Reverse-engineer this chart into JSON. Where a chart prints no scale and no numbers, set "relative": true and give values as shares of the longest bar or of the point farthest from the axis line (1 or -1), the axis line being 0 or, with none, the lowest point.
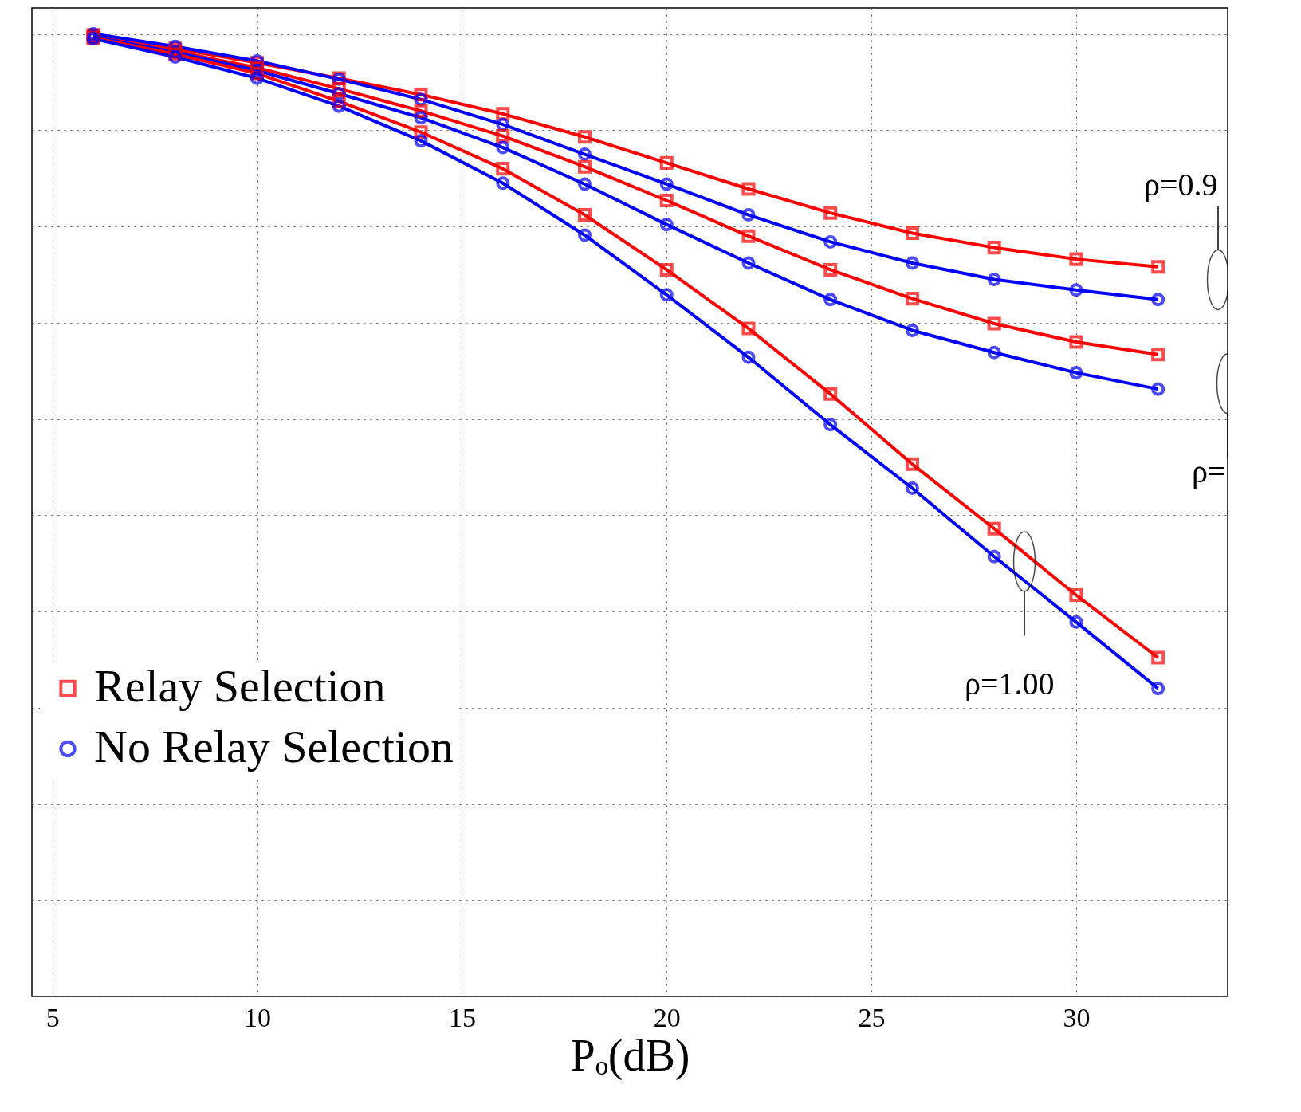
{
  "chart_data": {
    "type": "line",
    "relative": true,
    "xlabel": "Pₒ(dB)",
    "xlim": [
      4.5,
      33.7
    ],
    "xticks": [
      5,
      10,
      15,
      20,
      25,
      30
    ],
    "grid": true,
    "legend": "bottom left",
    "x": [
      6,
      8,
      10,
      12,
      14,
      16,
      18,
      20,
      22,
      24,
      26,
      28,
      30,
      32
    ],
    "series": [
      {
        "name": "Relay Selection",
        "color": "#ff0000",
        "marker": "square",
        "values": [
          0.999,
          0.985,
          0.97,
          0.954,
          0.937,
          0.917,
          0.893,
          0.866,
          0.839,
          0.814,
          0.793,
          0.778,
          0.766,
          0.758
        ]
      },
      {
        "name": "No Relay Selection",
        "color": "#0000ff",
        "marker": "circle",
        "values": [
          1,
          0.987,
          0.972,
          0.953,
          0.932,
          0.906,
          0.875,
          0.844,
          0.812,
          0.784,
          0.762,
          0.745,
          0.734,
          0.724
        ]
      },
      {
        "color": "#ff0000",
        "marker": "square",
        "values": [
          0.997,
          0.982,
          0.965,
          0.943,
          0.92,
          0.894,
          0.862,
          0.827,
          0.79,
          0.755,
          0.725,
          0.699,
          0.68,
          0.667
        ]
      },
      {
        "color": "#0000ff",
        "marker": "circle",
        "values": [
          0.997,
          0.981,
          0.962,
          0.938,
          0.913,
          0.882,
          0.844,
          0.802,
          0.762,
          0.724,
          0.692,
          0.669,
          0.648,
          0.631
        ]
      },
      {
        "color": "#ff0000",
        "marker": "square",
        "values": [
          0.996,
          0.979,
          0.959,
          0.93,
          0.898,
          0.86,
          0.812,
          0.755,
          0.694,
          0.626,
          0.553,
          0.486,
          0.417,
          0.352
        ]
      },
      {
        "color": "#0000ff",
        "marker": "circle",
        "values": [
          0.995,
          0.976,
          0.954,
          0.925,
          0.889,
          0.845,
          0.791,
          0.729,
          0.664,
          0.594,
          0.528,
          0.457,
          0.389,
          0.32
        ]
      }
    ],
    "line_style": "solid",
    "annotations": [
      "ρ=0.9",
      "ρ=",
      "ρ=1.00"
    ]
  }
}
